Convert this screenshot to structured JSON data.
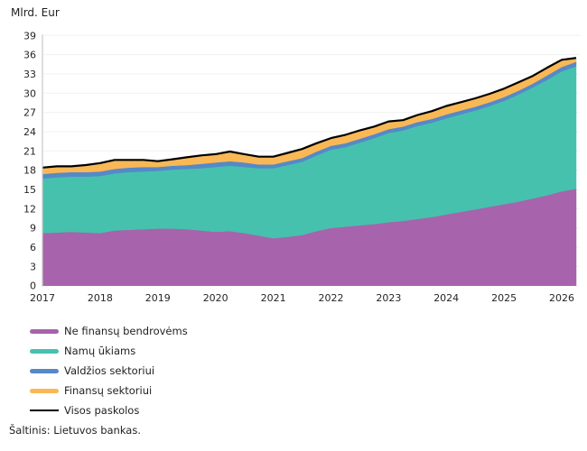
{
  "header": {
    "unit_label": "Mlrd. Eur"
  },
  "source": {
    "text": "Šaltinis: Lietuvos bankas."
  },
  "legend": {
    "items": [
      {
        "label": "Ne finansų bendrovėms",
        "color": "#a763ab",
        "type": "area"
      },
      {
        "label": "Namų ūkiams",
        "color": "#46c1ad",
        "type": "area"
      },
      {
        "label": "Valdžios sektoriui",
        "color": "#5589c8",
        "type": "area"
      },
      {
        "label": "Finansų sektoriui",
        "color": "#f9b855",
        "type": "area"
      },
      {
        "label": "Visos paskolos",
        "color": "#000000",
        "type": "line"
      }
    ]
  },
  "chart_data": {
    "type": "area",
    "stacked": true,
    "title": "",
    "ylabel": "Mlrd. Eur",
    "xlabel": "",
    "ylim": [
      0,
      39
    ],
    "y_ticks": [
      0,
      3,
      6,
      9,
      12,
      15,
      18,
      21,
      24,
      27,
      30,
      33,
      36,
      39
    ],
    "x_ticks": [
      2017,
      2018,
      2019,
      2020,
      2021,
      2022,
      2023,
      2024,
      2025,
      2026
    ],
    "grid": "horizontal",
    "legend_position": "bottom-left",
    "x": [
      2017.0,
      2017.25,
      2017.5,
      2017.75,
      2018.0,
      2018.25,
      2018.5,
      2018.75,
      2019.0,
      2019.25,
      2019.5,
      2019.75,
      2020.0,
      2020.25,
      2020.5,
      2020.75,
      2021.0,
      2021.25,
      2021.5,
      2021.75,
      2022.0,
      2022.25,
      2022.5,
      2022.75,
      2023.0,
      2023.25,
      2023.5,
      2023.75,
      2024.0,
      2024.25,
      2024.5,
      2024.75,
      2025.0,
      2025.25,
      2025.5,
      2025.75,
      2026.0,
      2026.25
    ],
    "series": [
      {
        "name": "Ne finansų bendrovėms",
        "color": "#a763ab",
        "values": [
          8.2,
          8.3,
          8.4,
          8.3,
          8.2,
          8.6,
          8.7,
          8.8,
          8.9,
          8.9,
          8.8,
          8.6,
          8.4,
          8.5,
          8.2,
          7.8,
          7.4,
          7.6,
          7.9,
          8.5,
          9.0,
          9.2,
          9.4,
          9.6,
          9.9,
          10.1,
          10.4,
          10.7,
          11.1,
          11.5,
          11.9,
          12.3,
          12.7,
          13.1,
          13.6,
          14.1,
          14.7,
          15.1
        ]
      },
      {
        "name": "Namų ūkiams",
        "color": "#46c1ad",
        "values": [
          8.5,
          8.6,
          8.6,
          8.7,
          8.9,
          8.9,
          9.0,
          9.0,
          9.0,
          9.2,
          9.4,
          9.7,
          10.1,
          10.2,
          10.3,
          10.5,
          10.9,
          11.2,
          11.4,
          11.8,
          12.2,
          12.4,
          12.9,
          13.4,
          13.9,
          14.1,
          14.5,
          14.7,
          15.0,
          15.2,
          15.4,
          15.7,
          16.1,
          16.7,
          17.3,
          18.0,
          18.7,
          19.1
        ]
      },
      {
        "name": "Valdžios sektoriui",
        "color": "#5589c8",
        "values": [
          0.7,
          0.7,
          0.7,
          0.7,
          0.7,
          0.7,
          0.7,
          0.7,
          0.6,
          0.6,
          0.6,
          0.7,
          0.7,
          0.7,
          0.7,
          0.6,
          0.6,
          0.6,
          0.6,
          0.6,
          0.6,
          0.6,
          0.6,
          0.6,
          0.6,
          0.6,
          0.6,
          0.6,
          0.6,
          0.6,
          0.6,
          0.6,
          0.6,
          0.6,
          0.6,
          0.7,
          0.7,
          0.7
        ]
      },
      {
        "name": "Finansų sektoriui",
        "color": "#f9b855",
        "values": [
          1.0,
          1.0,
          0.9,
          1.1,
          1.3,
          1.4,
          1.2,
          1.1,
          0.9,
          1.0,
          1.2,
          1.3,
          1.3,
          1.5,
          1.3,
          1.2,
          1.2,
          1.3,
          1.4,
          1.3,
          1.2,
          1.3,
          1.3,
          1.2,
          1.2,
          1.0,
          1.1,
          1.2,
          1.3,
          1.3,
          1.3,
          1.3,
          1.3,
          1.3,
          1.2,
          1.2,
          1.1,
          0.6
        ]
      }
    ],
    "total_line": {
      "name": "Visos paskolos",
      "color": "#000000"
    }
  }
}
